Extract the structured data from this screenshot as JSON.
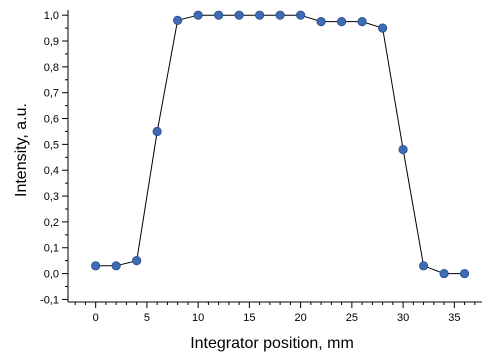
{
  "chart_data": {
    "type": "line",
    "title": "",
    "xlabel": "Integrator position,  mm",
    "ylabel": "Intensity, a.u.",
    "xlim": [
      -2.7,
      37.7
    ],
    "ylim": [
      -0.11,
      1.02
    ],
    "x_ticks": [
      0,
      5,
      10,
      15,
      20,
      25,
      30,
      35
    ],
    "x_tick_labels": [
      "0",
      "5",
      "10",
      "15",
      "20",
      "25",
      "30",
      "35"
    ],
    "x_minor_step": 1,
    "y_ticks": [
      -0.1,
      0.0,
      0.1,
      0.2,
      0.3,
      0.4,
      0.5,
      0.6,
      0.7,
      0.8,
      0.9,
      1.0
    ],
    "y_tick_labels": [
      "-0,1",
      "0,0",
      "0,1",
      "0,2",
      "0,3",
      "0,4",
      "0,5",
      "0,6",
      "0,7",
      "0,8",
      "0,9",
      "1,0"
    ],
    "y_minor_step": 0.05,
    "grid": false,
    "legend": "none",
    "marker_color": "#3d6cb5",
    "line_color": "#000000",
    "series": [
      {
        "x": [
          0,
          2,
          4,
          6,
          8,
          10,
          12,
          14,
          16,
          18,
          20,
          22,
          24,
          26,
          28,
          30,
          32,
          34,
          36
        ],
        "y": [
          0.03,
          0.03,
          0.05,
          0.55,
          0.98,
          1.0,
          1.0,
          1.0,
          1.0,
          1.0,
          1.0,
          0.975,
          0.975,
          0.975,
          0.95,
          0.48,
          0.03,
          0.0,
          0.0
        ]
      }
    ]
  }
}
